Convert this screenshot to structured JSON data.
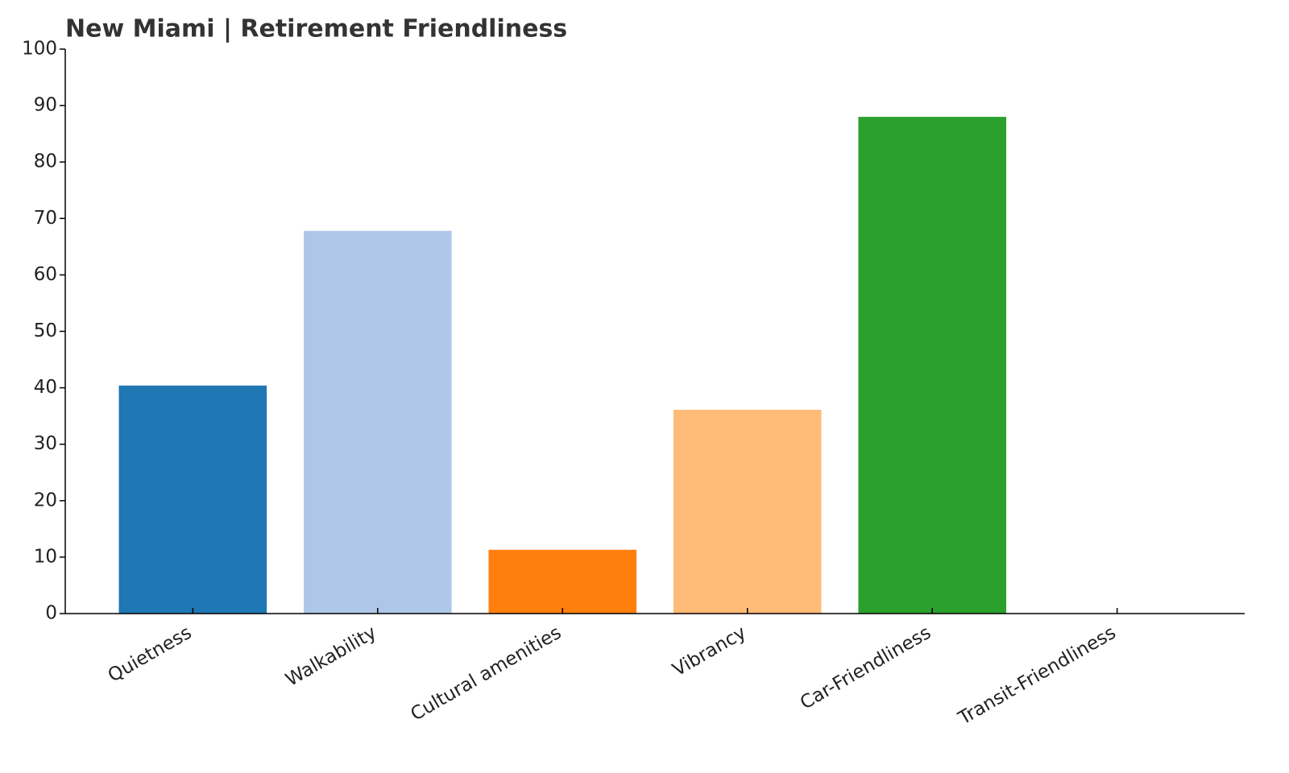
{
  "chart_data": {
    "type": "bar",
    "title": "New Miami | Retirement Friendliness",
    "categories": [
      "Quietness",
      "Walkability",
      "Cultural amenities",
      "Vibrancy",
      "Car-Friendliness",
      "Transit-Friendliness"
    ],
    "values": [
      40.4,
      67.8,
      11.3,
      36.1,
      88.0,
      0
    ],
    "colors": [
      "#1f77b4",
      "#aec7e8",
      "#ff7f0e",
      "#ffbb78",
      "#2ca02c",
      "#98df8a"
    ],
    "ylim": [
      0,
      100
    ],
    "yticks": [
      0,
      10,
      20,
      30,
      40,
      50,
      60,
      70,
      80,
      90,
      100
    ],
    "grid": false
  }
}
